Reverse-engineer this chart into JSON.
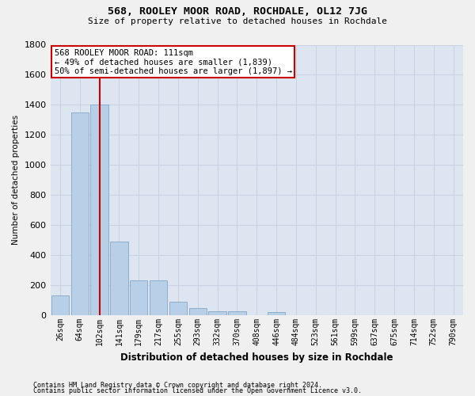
{
  "title": "568, ROOLEY MOOR ROAD, ROCHDALE, OL12 7JG",
  "subtitle": "Size of property relative to detached houses in Rochdale",
  "xlabel": "Distribution of detached houses by size in Rochdale",
  "ylabel": "Number of detached properties",
  "footer_line1": "Contains HM Land Registry data © Crown copyright and database right 2024.",
  "footer_line2": "Contains public sector information licensed under the Open Government Licence v3.0.",
  "bar_labels": [
    "26sqm",
    "64sqm",
    "102sqm",
    "141sqm",
    "179sqm",
    "217sqm",
    "255sqm",
    "293sqm",
    "332sqm",
    "370sqm",
    "408sqm",
    "446sqm",
    "484sqm",
    "523sqm",
    "561sqm",
    "599sqm",
    "637sqm",
    "675sqm",
    "714sqm",
    "752sqm",
    "790sqm"
  ],
  "bar_values": [
    135,
    1350,
    1400,
    490,
    230,
    230,
    90,
    48,
    28,
    25,
    0,
    22,
    0,
    0,
    0,
    0,
    0,
    0,
    0,
    0,
    0
  ],
  "bar_color": "#b8cfe8",
  "bar_edge_color": "#90aecc",
  "vline_x_index": 2,
  "vline_color": "#cc0000",
  "ylim": [
    0,
    1800
  ],
  "yticks": [
    0,
    200,
    400,
    600,
    800,
    1000,
    1200,
    1400,
    1600,
    1800
  ],
  "annotation_title": "568 ROOLEY MOOR ROAD: 111sqm",
  "annotation_line1": "← 49% of detached houses are smaller (1,839)",
  "annotation_line2": "50% of semi-detached houses are larger (1,897) →",
  "annotation_box_color": "#ffffff",
  "annotation_box_edge": "#cc0000",
  "grid_color": "#c8d4e4",
  "bg_color": "#dde5f0",
  "fig_bg_color": "#f0f0f0"
}
